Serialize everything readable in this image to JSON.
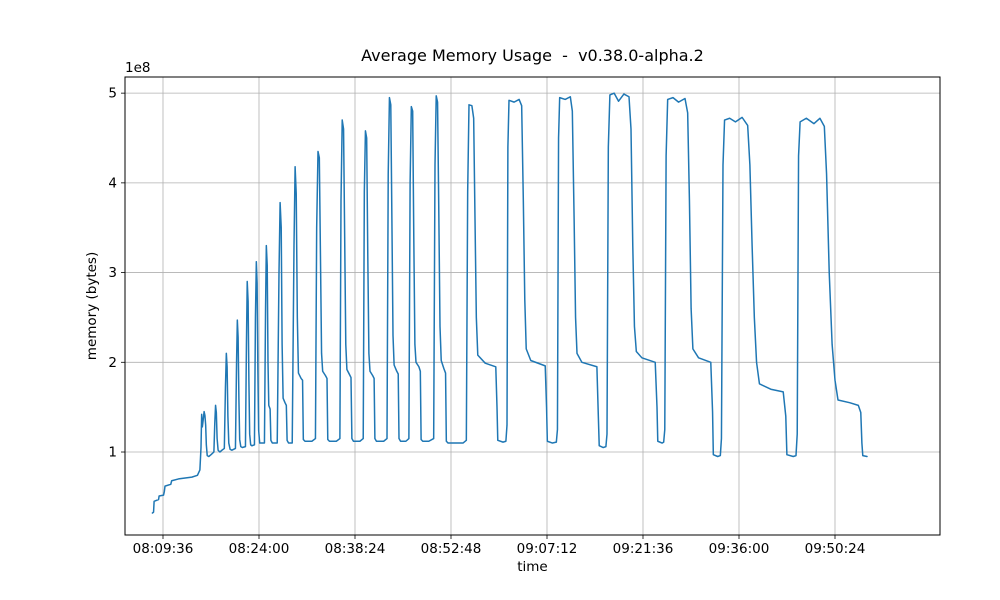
{
  "chart_data": {
    "type": "line",
    "title": "Average Memory Usage  -  v0.38.0-alpha.2",
    "xlabel": "time",
    "ylabel": "memory (bytes)",
    "offset_label": "1e8",
    "legend": null,
    "grid": true,
    "line_color": "#1f77b4",
    "grid_color": "#b0b0b0",
    "spine_color": "#000000",
    "y_unit": "1e8 bytes",
    "xlim_seconds": [
      -342,
      6993
    ],
    "ylim_1e8": [
      0.075,
      5.18
    ],
    "x_tick_seconds": [
      0,
      864,
      1728,
      2592,
      3456,
      4320,
      5184,
      6048
    ],
    "x_tick_labels": [
      "08:09:36",
      "08:24:00",
      "08:38:24",
      "08:52:48",
      "09:07:12",
      "09:21:36",
      "09:36:00",
      "09:50:24"
    ],
    "y_tick_values": [
      1,
      2,
      3,
      4,
      5
    ],
    "y_tick_labels": [
      "1",
      "2",
      "3",
      "4",
      "5"
    ],
    "points_t_v": [
      [
        -95,
        0.32
      ],
      [
        -85,
        0.33
      ],
      [
        -80,
        0.45
      ],
      [
        -40,
        0.47
      ],
      [
        -35,
        0.51
      ],
      [
        5,
        0.52
      ],
      [
        12,
        0.56
      ],
      [
        18,
        0.62
      ],
      [
        70,
        0.64
      ],
      [
        78,
        0.68
      ],
      [
        140,
        0.7
      ],
      [
        200,
        0.71
      ],
      [
        260,
        0.72
      ],
      [
        310,
        0.74
      ],
      [
        332,
        0.8
      ],
      [
        342,
        1.05
      ],
      [
        348,
        1.42
      ],
      [
        354,
        1.28
      ],
      [
        362,
        1.36
      ],
      [
        370,
        1.45
      ],
      [
        377,
        1.41
      ],
      [
        384,
        1.3
      ],
      [
        390,
        1.08
      ],
      [
        398,
        0.96
      ],
      [
        412,
        0.95
      ],
      [
        432,
        0.97
      ],
      [
        458,
        1.0
      ],
      [
        466,
        1.32
      ],
      [
        473,
        1.52
      ],
      [
        480,
        1.44
      ],
      [
        487,
        1.15
      ],
      [
        496,
        1.02
      ],
      [
        512,
        1.0
      ],
      [
        530,
        1.02
      ],
      [
        552,
        1.04
      ],
      [
        562,
        1.72
      ],
      [
        570,
        2.1
      ],
      [
        577,
        1.95
      ],
      [
        584,
        1.4
      ],
      [
        592,
        1.1
      ],
      [
        604,
        1.03
      ],
      [
        620,
        1.02
      ],
      [
        652,
        1.04
      ],
      [
        662,
        2.0
      ],
      [
        669,
        2.47
      ],
      [
        676,
        2.28
      ],
      [
        683,
        1.6
      ],
      [
        690,
        1.14
      ],
      [
        700,
        1.06
      ],
      [
        714,
        1.05
      ],
      [
        742,
        1.06
      ],
      [
        751,
        2.2
      ],
      [
        758,
        2.9
      ],
      [
        766,
        2.68
      ],
      [
        773,
        1.8
      ],
      [
        780,
        1.2
      ],
      [
        789,
        1.08
      ],
      [
        800,
        1.07
      ],
      [
        823,
        1.08
      ],
      [
        832,
        2.5
      ],
      [
        840,
        3.12
      ],
      [
        847,
        2.88
      ],
      [
        854,
        1.9
      ],
      [
        861,
        1.24
      ],
      [
        870,
        1.1
      ],
      [
        913,
        1.1
      ],
      [
        923,
        2.6
      ],
      [
        930,
        3.3
      ],
      [
        938,
        3.08
      ],
      [
        945,
        2.0
      ],
      [
        952,
        1.52
      ],
      [
        964,
        1.48
      ],
      [
        971,
        1.13
      ],
      [
        984,
        1.1
      ],
      [
        1028,
        1.1
      ],
      [
        1044,
        3.0
      ],
      [
        1054,
        3.78
      ],
      [
        1064,
        3.5
      ],
      [
        1072,
        2.2
      ],
      [
        1081,
        1.6
      ],
      [
        1098,
        1.55
      ],
      [
        1110,
        1.52
      ],
      [
        1117,
        1.13
      ],
      [
        1130,
        1.1
      ],
      [
        1163,
        1.1
      ],
      [
        1179,
        3.3
      ],
      [
        1189,
        4.18
      ],
      [
        1199,
        3.88
      ],
      [
        1209,
        2.5
      ],
      [
        1219,
        1.88
      ],
      [
        1243,
        1.82
      ],
      [
        1256,
        1.8
      ],
      [
        1263,
        1.14
      ],
      [
        1278,
        1.12
      ],
      [
        1340,
        1.12
      ],
      [
        1372,
        1.15
      ],
      [
        1383,
        3.5
      ],
      [
        1395,
        4.35
      ],
      [
        1407,
        4.28
      ],
      [
        1417,
        3.2
      ],
      [
        1427,
        2.1
      ],
      [
        1437,
        1.9
      ],
      [
        1463,
        1.85
      ],
      [
        1476,
        1.82
      ],
      [
        1483,
        1.14
      ],
      [
        1498,
        1.12
      ],
      [
        1560,
        1.12
      ],
      [
        1592,
        1.15
      ],
      [
        1602,
        3.8
      ],
      [
        1613,
        4.7
      ],
      [
        1625,
        4.6
      ],
      [
        1635,
        3.4
      ],
      [
        1645,
        2.2
      ],
      [
        1655,
        1.92
      ],
      [
        1680,
        1.86
      ],
      [
        1692,
        1.83
      ],
      [
        1700,
        1.15
      ],
      [
        1714,
        1.12
      ],
      [
        1772,
        1.12
      ],
      [
        1802,
        1.15
      ],
      [
        1812,
        3.9
      ],
      [
        1822,
        4.58
      ],
      [
        1833,
        4.5
      ],
      [
        1843,
        3.2
      ],
      [
        1853,
        2.1
      ],
      [
        1863,
        1.9
      ],
      [
        1888,
        1.85
      ],
      [
        1900,
        1.82
      ],
      [
        1907,
        1.15
      ],
      [
        1921,
        1.12
      ],
      [
        1986,
        1.12
      ],
      [
        2016,
        1.15
      ],
      [
        2027,
        4.1
      ],
      [
        2038,
        4.95
      ],
      [
        2050,
        4.87
      ],
      [
        2060,
        3.6
      ],
      [
        2070,
        2.3
      ],
      [
        2080,
        1.97
      ],
      [
        2104,
        1.9
      ],
      [
        2117,
        1.87
      ],
      [
        2124,
        1.15
      ],
      [
        2138,
        1.12
      ],
      [
        2186,
        1.12
      ],
      [
        2213,
        1.15
      ],
      [
        2224,
        4.0
      ],
      [
        2235,
        4.85
      ],
      [
        2247,
        4.8
      ],
      [
        2257,
        3.4
      ],
      [
        2267,
        2.2
      ],
      [
        2277,
        2.0
      ],
      [
        2303,
        1.95
      ],
      [
        2316,
        1.9
      ],
      [
        2323,
        1.14
      ],
      [
        2338,
        1.12
      ],
      [
        2392,
        1.12
      ],
      [
        2436,
        1.15
      ],
      [
        2448,
        4.2
      ],
      [
        2459,
        4.97
      ],
      [
        2471,
        4.9
      ],
      [
        2482,
        3.7
      ],
      [
        2493,
        2.4
      ],
      [
        2504,
        2.02
      ],
      [
        2528,
        1.93
      ],
      [
        2543,
        1.88
      ],
      [
        2550,
        1.12
      ],
      [
        2566,
        1.1
      ],
      [
        2700,
        1.1
      ],
      [
        2730,
        1.13
      ],
      [
        2742,
        3.9
      ],
      [
        2754,
        4.87
      ],
      [
        2780,
        4.86
      ],
      [
        2796,
        4.72
      ],
      [
        2808,
        3.6
      ],
      [
        2820,
        2.5
      ],
      [
        2833,
        2.08
      ],
      [
        2900,
        1.99
      ],
      [
        2995,
        1.95
      ],
      [
        3006,
        1.5
      ],
      [
        3013,
        1.13
      ],
      [
        3060,
        1.11
      ],
      [
        3086,
        1.12
      ],
      [
        3096,
        1.3
      ],
      [
        3104,
        4.4
      ],
      [
        3114,
        4.92
      ],
      [
        3160,
        4.9
      ],
      [
        3205,
        4.93
      ],
      [
        3228,
        4.86
      ],
      [
        3243,
        3.8
      ],
      [
        3256,
        2.7
      ],
      [
        3269,
        2.15
      ],
      [
        3310,
        2.02
      ],
      [
        3440,
        1.96
      ],
      [
        3452,
        1.5
      ],
      [
        3459,
        1.12
      ],
      [
        3505,
        1.1
      ],
      [
        3540,
        1.11
      ],
      [
        3550,
        1.25
      ],
      [
        3560,
        4.5
      ],
      [
        3570,
        4.95
      ],
      [
        3620,
        4.93
      ],
      [
        3666,
        4.96
      ],
      [
        3684,
        4.8
      ],
      [
        3700,
        3.6
      ],
      [
        3713,
        2.5
      ],
      [
        3726,
        2.1
      ],
      [
        3770,
        2.0
      ],
      [
        3905,
        1.95
      ],
      [
        3918,
        1.4
      ],
      [
        3926,
        1.07
      ],
      [
        3962,
        1.05
      ],
      [
        3986,
        1.06
      ],
      [
        3996,
        1.2
      ],
      [
        4008,
        4.4
      ],
      [
        4022,
        4.98
      ],
      [
        4060,
        5.0
      ],
      [
        4100,
        4.91
      ],
      [
        4148,
        4.99
      ],
      [
        4194,
        4.96
      ],
      [
        4212,
        4.6
      ],
      [
        4228,
        3.3
      ],
      [
        4243,
        2.4
      ],
      [
        4260,
        2.12
      ],
      [
        4310,
        2.05
      ],
      [
        4430,
        2.0
      ],
      [
        4446,
        1.5
      ],
      [
        4453,
        1.12
      ],
      [
        4492,
        1.1
      ],
      [
        4506,
        1.11
      ],
      [
        4516,
        1.25
      ],
      [
        4528,
        4.3
      ],
      [
        4542,
        4.93
      ],
      [
        4590,
        4.95
      ],
      [
        4640,
        4.9
      ],
      [
        4698,
        4.94
      ],
      [
        4722,
        4.78
      ],
      [
        4738,
        3.8
      ],
      [
        4753,
        2.6
      ],
      [
        4769,
        2.15
      ],
      [
        4820,
        2.05
      ],
      [
        4930,
        2.0
      ],
      [
        4946,
        1.45
      ],
      [
        4953,
        0.97
      ],
      [
        4992,
        0.95
      ],
      [
        5016,
        0.96
      ],
      [
        5026,
        1.15
      ],
      [
        5040,
        4.2
      ],
      [
        5054,
        4.7
      ],
      [
        5100,
        4.72
      ],
      [
        5152,
        4.68
      ],
      [
        5212,
        4.73
      ],
      [
        5262,
        4.64
      ],
      [
        5282,
        4.2
      ],
      [
        5302,
        3.3
      ],
      [
        5322,
        2.5
      ],
      [
        5342,
        2.0
      ],
      [
        5368,
        1.76
      ],
      [
        5470,
        1.7
      ],
      [
        5582,
        1.67
      ],
      [
        5605,
        1.4
      ],
      [
        5615,
        0.97
      ],
      [
        5672,
        0.95
      ],
      [
        5697,
        0.96
      ],
      [
        5708,
        1.2
      ],
      [
        5720,
        4.3
      ],
      [
        5734,
        4.68
      ],
      [
        5790,
        4.72
      ],
      [
        5858,
        4.66
      ],
      [
        5912,
        4.72
      ],
      [
        5952,
        4.63
      ],
      [
        5972,
        4.1
      ],
      [
        5996,
        3.0
      ],
      [
        6022,
        2.2
      ],
      [
        6048,
        1.8
      ],
      [
        6075,
        1.58
      ],
      [
        6180,
        1.55
      ],
      [
        6258,
        1.52
      ],
      [
        6280,
        1.44
      ],
      [
        6290,
        1.1
      ],
      [
        6298,
        0.96
      ],
      [
        6336,
        0.95
      ]
    ]
  }
}
